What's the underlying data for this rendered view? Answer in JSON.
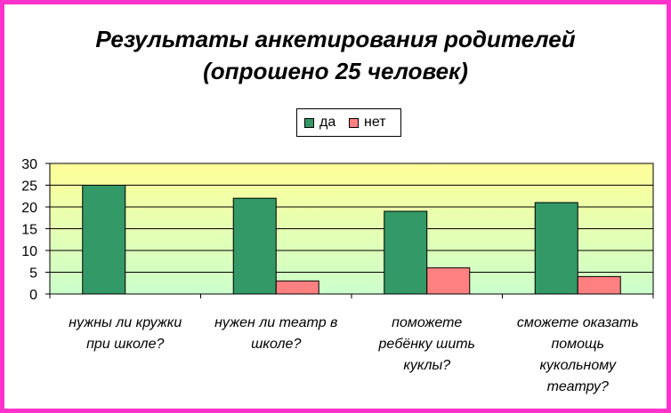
{
  "chart_data": {
    "type": "bar",
    "title_lines": [
      "Результаты анкетирования родителей",
      "(опрошено 25 человек)"
    ],
    "categories": [
      [
        "нужны ли кружки",
        "при школе?"
      ],
      [
        "нужен ли театр в",
        "школе?"
      ],
      [
        "поможете",
        "ребёнку шить",
        "куклы?"
      ],
      [
        "сможете оказать",
        "помощь",
        "кукольному",
        "театру?"
      ]
    ],
    "series": [
      {
        "name": "да",
        "values": [
          25,
          22,
          19,
          21
        ],
        "color": "#339966"
      },
      {
        "name": "нет",
        "values": [
          0,
          3,
          6,
          4
        ],
        "color": "#ff8080"
      }
    ],
    "ylim": [
      0,
      30
    ],
    "yticks": [
      0,
      5,
      10,
      15,
      20,
      25,
      30
    ],
    "grid": true,
    "legend": "top",
    "plot_gradient": [
      "#ffff99",
      "#ccffcc"
    ],
    "frame_color": "#ff33cc"
  }
}
